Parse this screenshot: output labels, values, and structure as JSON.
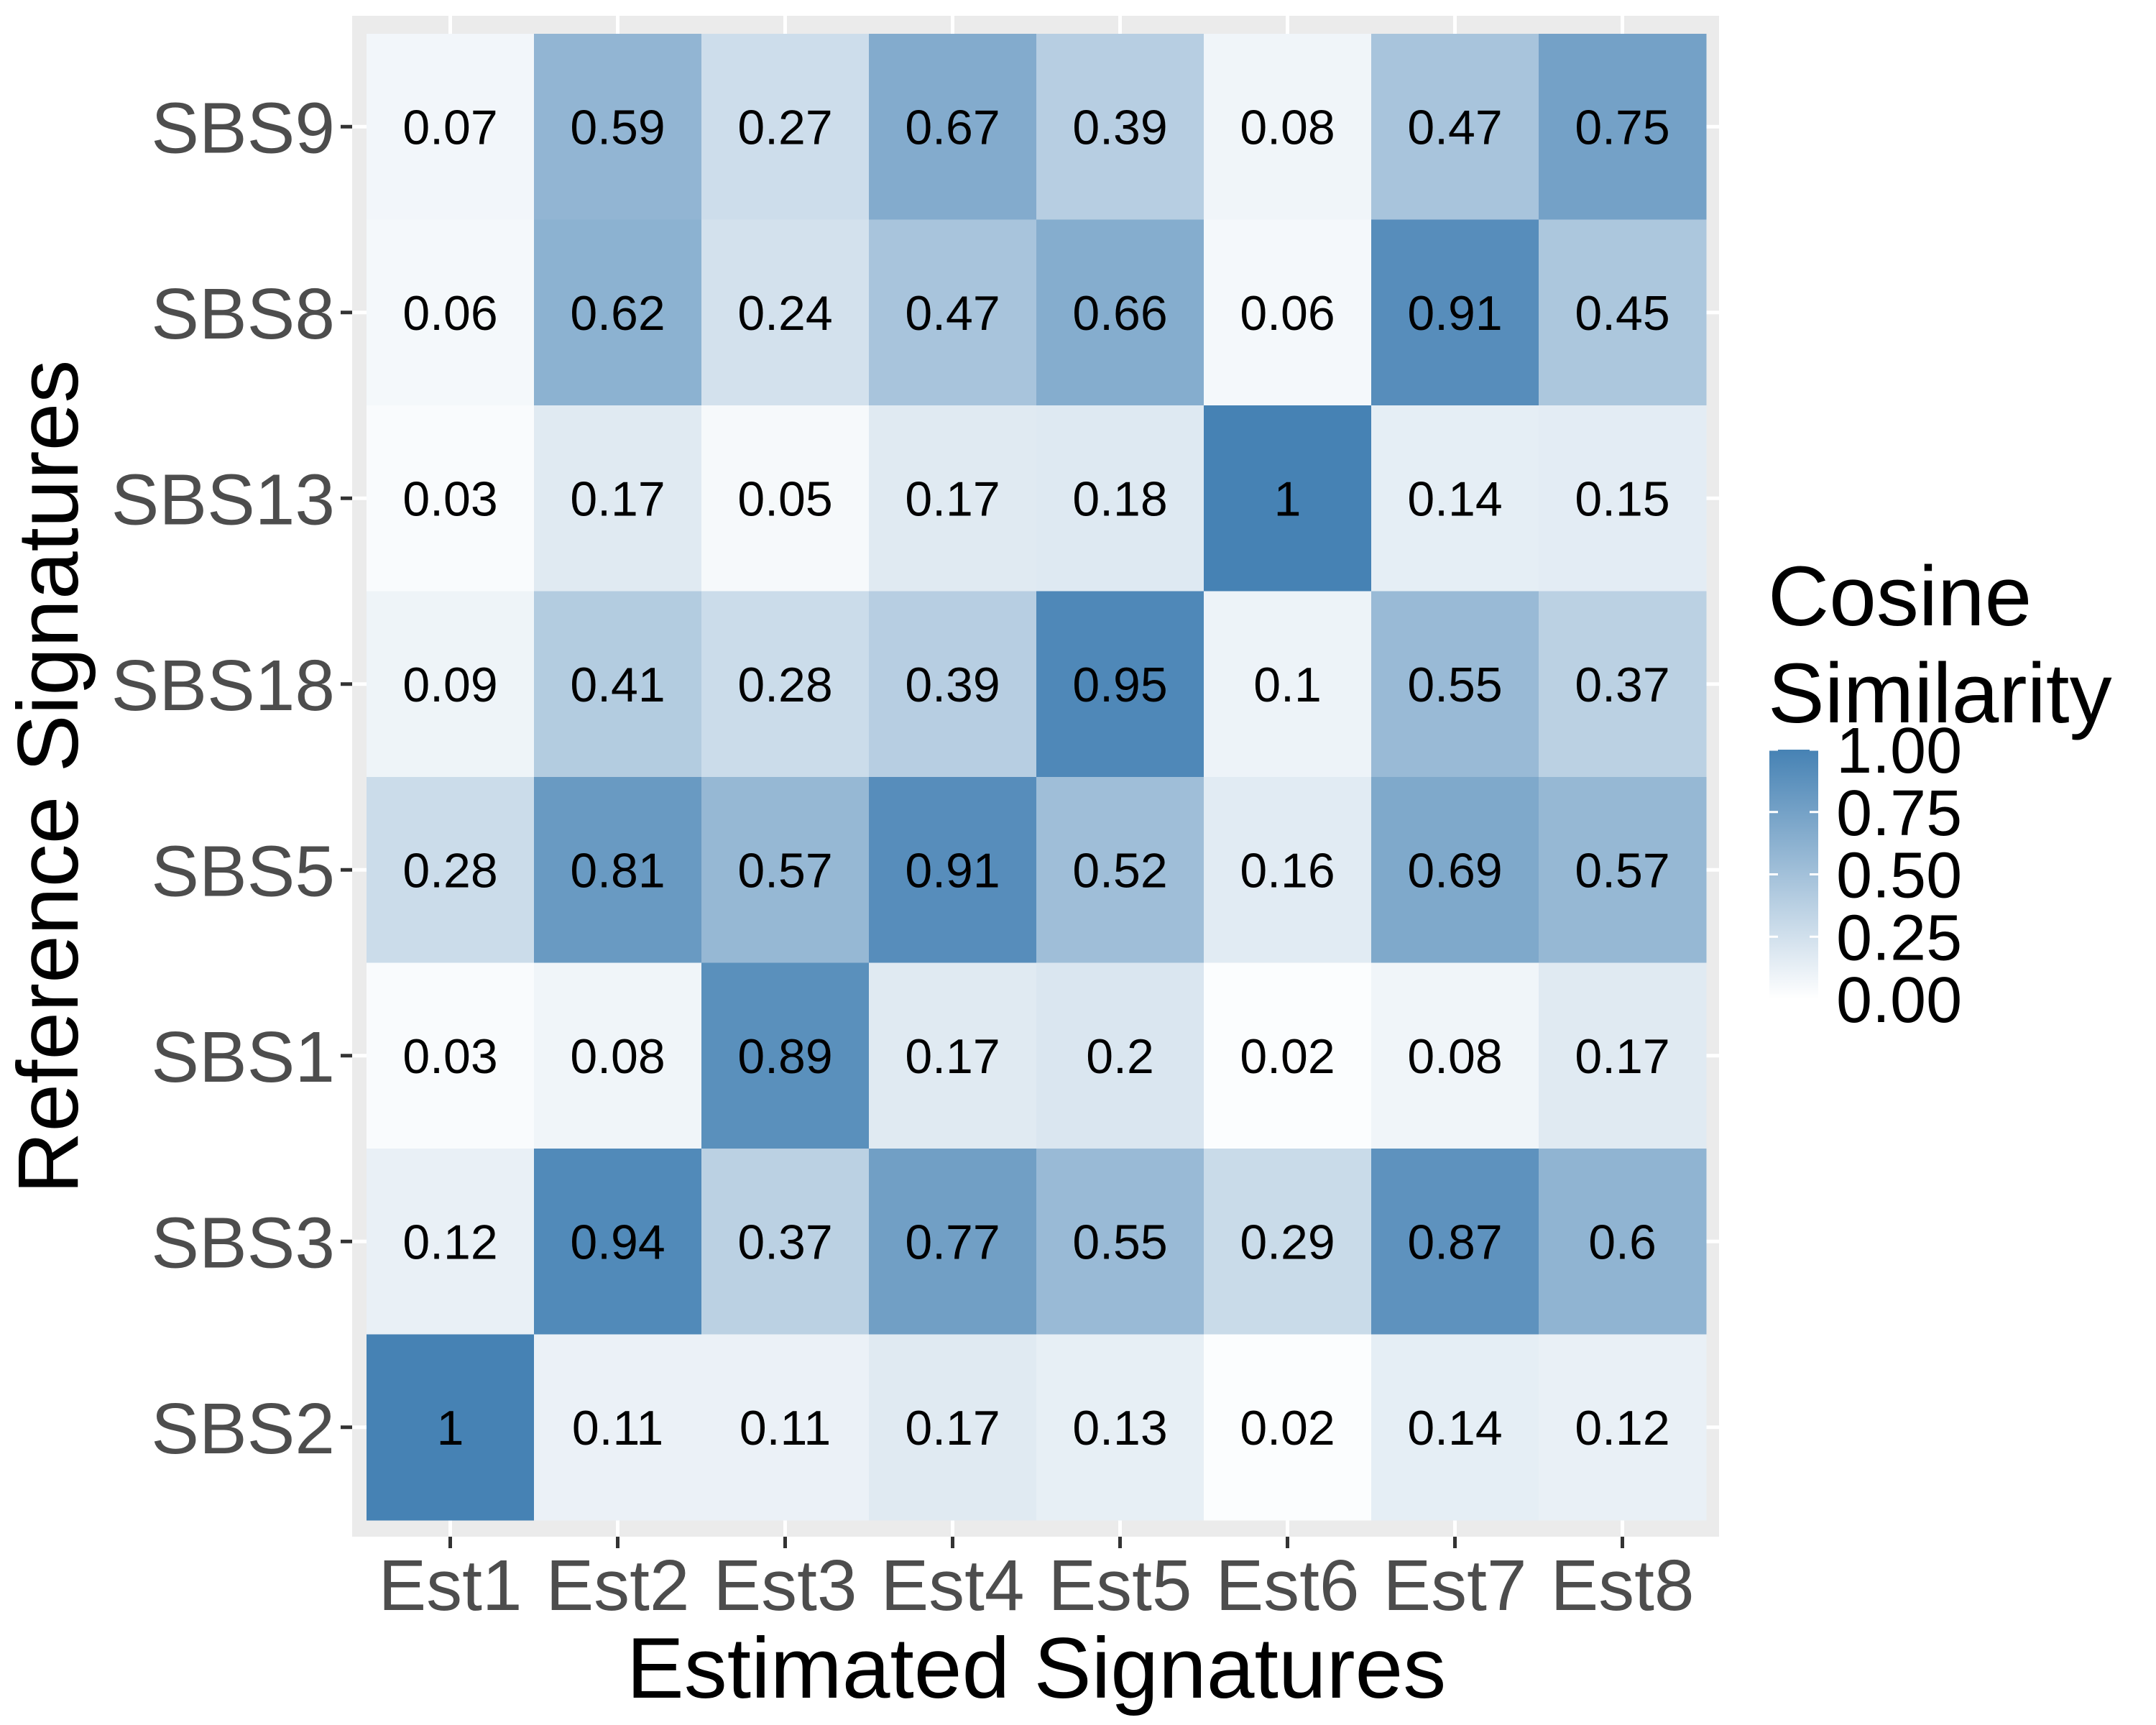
{
  "chart_data": {
    "type": "heatmap",
    "title": "",
    "xlabel": "Estimated Signatures",
    "ylabel": "Reference Signatures",
    "x_categories": [
      "Est1",
      "Est2",
      "Est3",
      "Est4",
      "Est5",
      "Est6",
      "Est7",
      "Est8"
    ],
    "y_categories": [
      "SBS9",
      "SBS8",
      "SBS13",
      "SBS18",
      "SBS5",
      "SBS1",
      "SBS3",
      "SBS2"
    ],
    "values": [
      [
        "0.07",
        "0.59",
        "0.27",
        "0.67",
        "0.39",
        "0.08",
        "0.47",
        "0.75"
      ],
      [
        "0.06",
        "0.62",
        "0.24",
        "0.47",
        "0.66",
        "0.06",
        "0.91",
        "0.45"
      ],
      [
        "0.03",
        "0.17",
        "0.05",
        "0.17",
        "0.18",
        "1",
        "0.14",
        "0.15"
      ],
      [
        "0.09",
        "0.41",
        "0.28",
        "0.39",
        "0.95",
        "0.1",
        "0.55",
        "0.37"
      ],
      [
        "0.28",
        "0.81",
        "0.57",
        "0.91",
        "0.52",
        "0.16",
        "0.69",
        "0.57"
      ],
      [
        "0.03",
        "0.08",
        "0.89",
        "0.17",
        "0.2",
        "0.02",
        "0.08",
        "0.17"
      ],
      [
        "0.12",
        "0.94",
        "0.37",
        "0.77",
        "0.55",
        "0.29",
        "0.87",
        "0.6"
      ],
      [
        "1",
        "0.11",
        "0.11",
        "0.17",
        "0.13",
        "0.02",
        "0.14",
        "0.12"
      ]
    ],
    "color_scale": {
      "low": "#ffffff",
      "high": "#4682b4",
      "range": [
        0,
        1
      ]
    },
    "legend": {
      "title_lines": [
        "Cosine",
        "Similarity"
      ],
      "ticks": [
        "1.00",
        "0.75",
        "0.50",
        "0.25",
        "0.00"
      ],
      "placement": "right"
    },
    "panel_background": "#ebebeb",
    "grid": true
  }
}
